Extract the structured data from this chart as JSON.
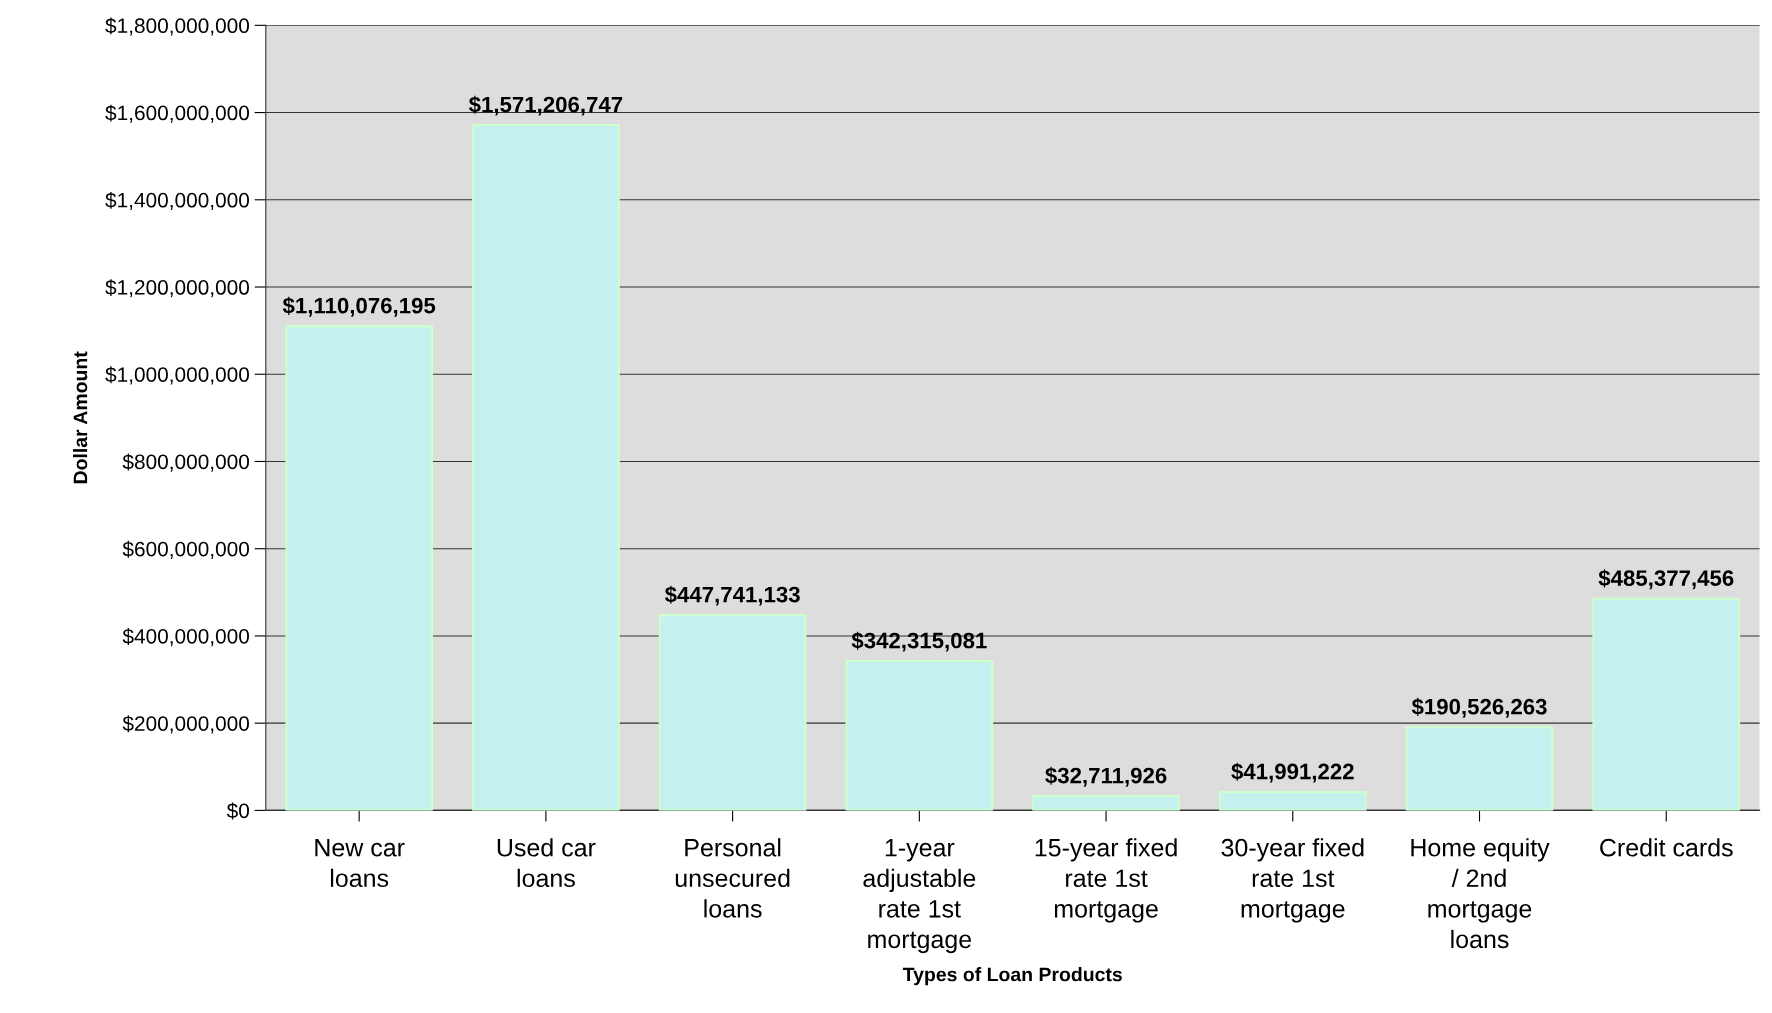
{
  "chart_data": {
    "type": "bar",
    "xlabel": "Types of Loan Products",
    "ylabel": "Dollar Amount",
    "categories": [
      "New car\nloans",
      "Used car\nloans",
      "Personal\nunsecured\nloans",
      "1-year\nadjustable\nrate 1st\nmortgage",
      "15-year fixed\nrate 1st\nmortgage",
      "30-year fixed\nrate 1st\nmortgage",
      "Home equity\n/ 2nd\nmortgage\nloans",
      "Credit cards"
    ],
    "values": [
      1110076195,
      1571206747,
      447741133,
      342315081,
      32711926,
      41991222,
      190526263,
      485377456
    ],
    "value_labels": [
      "$1,110,076,195",
      "$1,571,206,747",
      "$447,741,133",
      "$342,315,081",
      "$32,711,926",
      "$41,991,222",
      "$190,526,263",
      "$485,377,456"
    ],
    "color": "#c4f0f0",
    "ylim": [
      0,
      1800000000
    ],
    "yticks": [
      {
        "value": 0,
        "label": "$0"
      },
      {
        "value": 200000000,
        "label": "$200,000,000"
      },
      {
        "value": 400000000,
        "label": "$400,000,000"
      },
      {
        "value": 600000000,
        "label": "$600,000,000"
      },
      {
        "value": 800000000,
        "label": "$800,000,000"
      },
      {
        "value": 1000000000,
        "label": "$1,000,000,000"
      },
      {
        "value": 1200000000,
        "label": "$1,200,000,000"
      },
      {
        "value": 1400000000,
        "label": "$1,400,000,000"
      },
      {
        "value": 1600000000,
        "label": "$1,600,000,000"
      },
      {
        "value": 1800000000,
        "label": "$1,800,000,000"
      }
    ],
    "grid": "y"
  }
}
